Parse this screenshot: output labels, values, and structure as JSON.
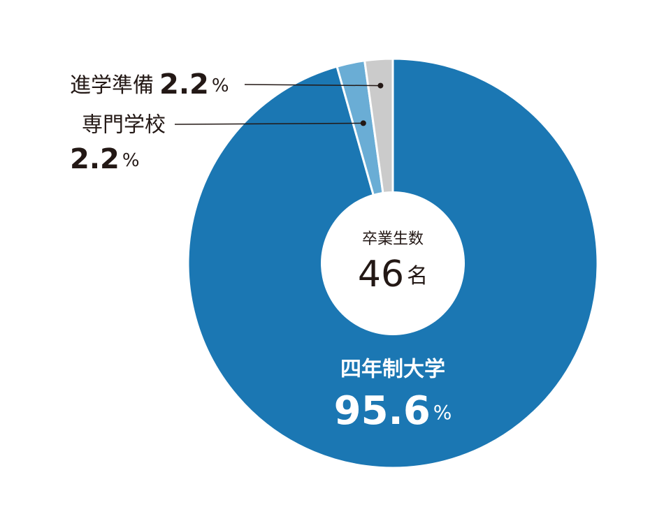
{
  "chart_data": {
    "type": "donut",
    "categories": [
      "四年制大学",
      "専門学校",
      "進学準備"
    ],
    "values": [
      95.6,
      2.2,
      2.2
    ],
    "colors": [
      "#1b77b3",
      "#6aadd5",
      "#cbcbcb"
    ],
    "unit": "%",
    "center_label": "卒業生数",
    "center_value": 46,
    "center_unit": "名"
  }
}
